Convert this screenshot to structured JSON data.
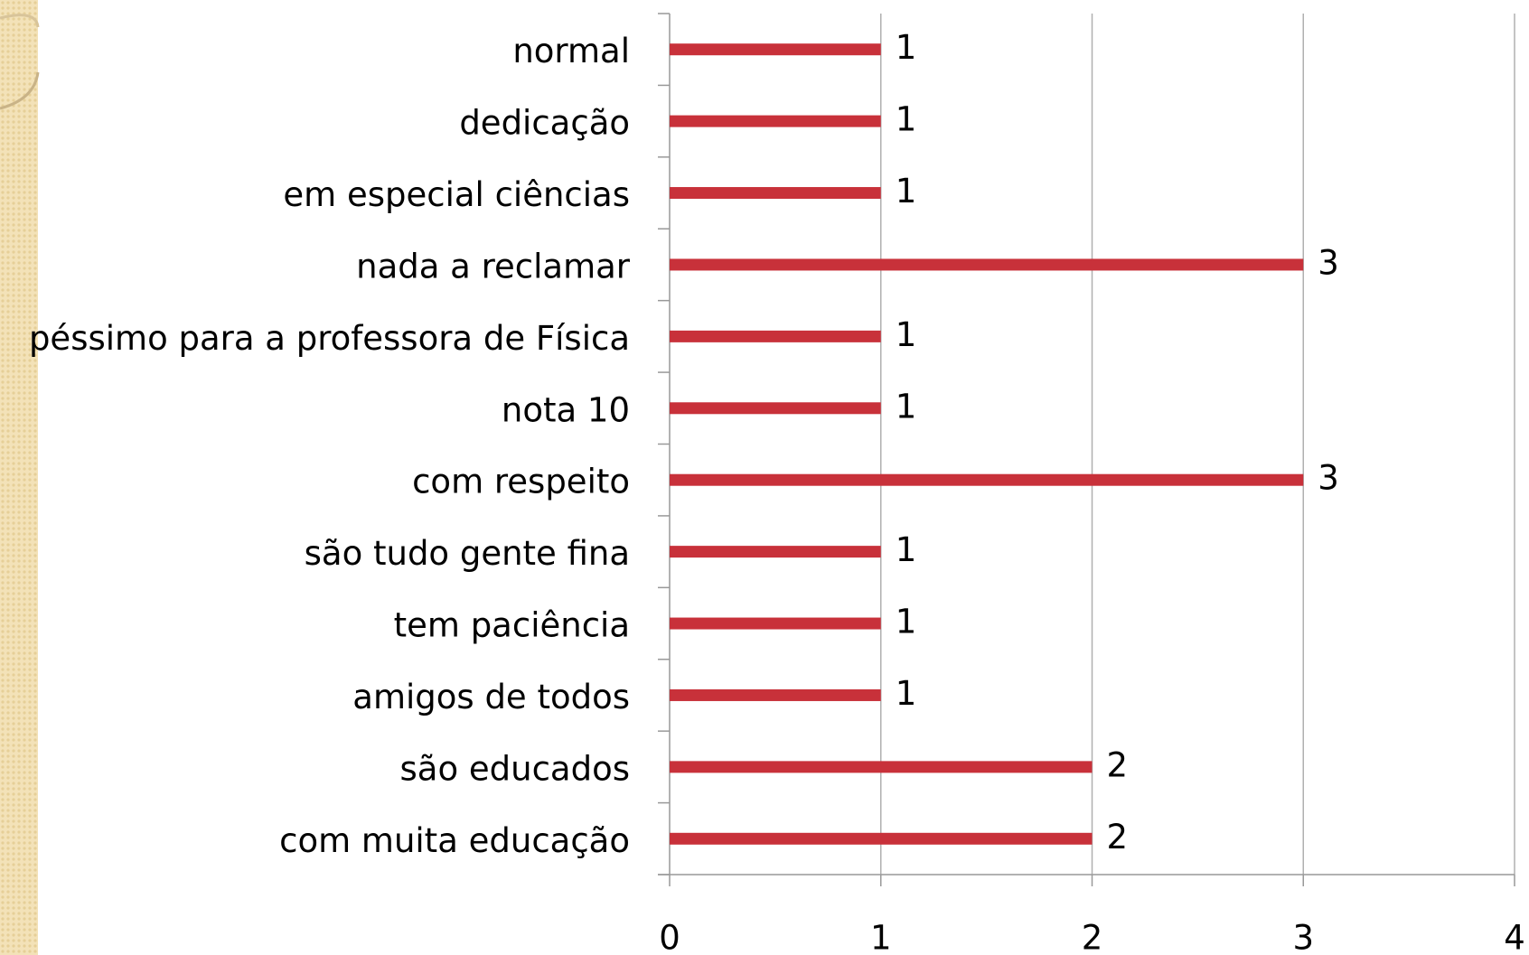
{
  "chart_data": {
    "type": "barh",
    "categories": [
      "normal",
      "dedicação",
      "em especial ciências",
      "nada a reclamar",
      "péssimo para a professora de Física",
      "nota 10",
      "com respeito",
      "são tudo gente fina",
      "tem paciência",
      "amigos de todos",
      "são educados",
      "com muita educação"
    ],
    "values": [
      1,
      1,
      1,
      3,
      1,
      1,
      3,
      1,
      1,
      1,
      2,
      2
    ],
    "color": "#c8313a",
    "xlim": [
      0,
      4
    ],
    "xticks": [
      0,
      1,
      2,
      3,
      4
    ],
    "grid": true
  }
}
